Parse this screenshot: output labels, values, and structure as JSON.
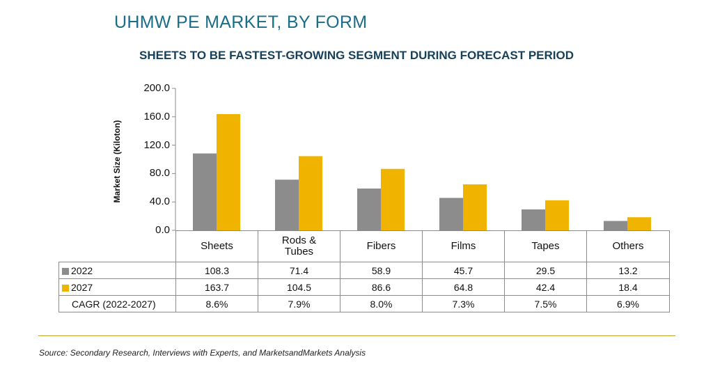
{
  "header": {
    "title": "UHMW PE MARKET, BY FORM",
    "subtitle": "SHEETS TO BE FASTEST-GROWING SEGMENT DURING FORECAST PERIOD"
  },
  "chart_data": {
    "type": "bar",
    "ylabel": "Market Size (Kiloton)",
    "ylim": [
      0,
      200
    ],
    "yticks": [
      "0.0",
      "40.0",
      "80.0",
      "120.0",
      "160.0",
      "200.0"
    ],
    "categories": [
      "Sheets",
      "Rods & Tubes",
      "Fibers",
      "Films",
      "Tapes",
      "Others"
    ],
    "series": [
      {
        "name": "2022",
        "color": "#8c8c8c",
        "values": [
          108.3,
          71.4,
          58.9,
          45.7,
          29.5,
          13.2
        ]
      },
      {
        "name": "2027",
        "color": "#f0b400",
        "values": [
          163.7,
          104.5,
          86.6,
          64.8,
          42.4,
          18.4
        ]
      }
    ],
    "grid": false,
    "legend": "data-table-rows"
  },
  "table": {
    "cagr_label": "CAGR (2022-2027)",
    "cagr": [
      "8.6%",
      "7.9%",
      "8.0%",
      "7.3%",
      "7.5%",
      "6.9%"
    ]
  },
  "footer": {
    "source": "Source: Secondary Research, Interviews with Experts, and MarketsandMarkets Analysis"
  }
}
